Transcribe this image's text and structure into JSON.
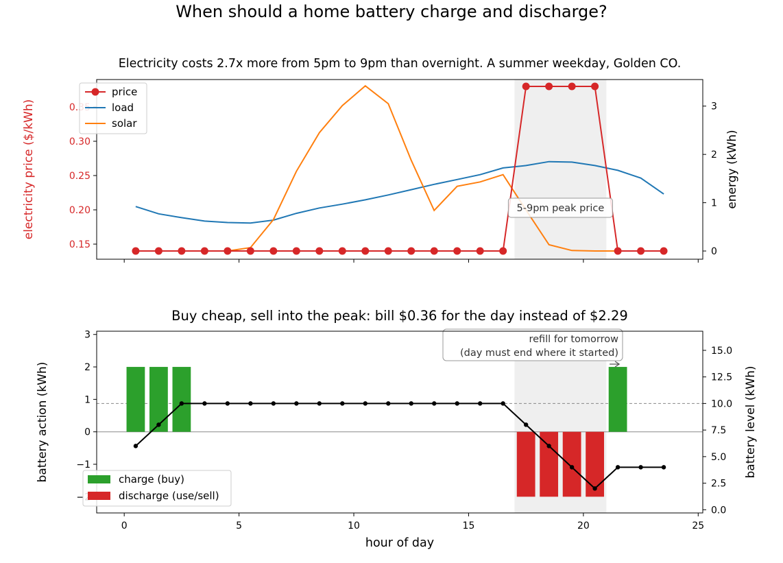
{
  "suptitle": "When should a home battery charge and discharge?",
  "chart_data": [
    {
      "type": "line",
      "title": "Electricity costs 2.7x more from 5pm to 9pm than overnight. A summer weekday, Golden CO.",
      "x": [
        0.5,
        1.5,
        2.5,
        3.5,
        4.5,
        5.5,
        6.5,
        7.5,
        8.5,
        9.5,
        10.5,
        11.5,
        12.5,
        13.5,
        14.5,
        15.5,
        16.5,
        17.5,
        18.5,
        19.5,
        20.5,
        21.5,
        22.5,
        23.5
      ],
      "xlim": [
        -1.2,
        25.2
      ],
      "xticks": [
        0,
        5,
        10,
        15,
        20,
        25
      ],
      "ylabel_left": "electricity price ($/kWh)",
      "ylim_left": [
        0.128,
        0.39
      ],
      "yticks_left": [
        "0.15",
        "0.20",
        "0.25",
        "0.30",
        "0.35"
      ],
      "ylabel_right": "energy (kWh)",
      "ylim_right": [
        -0.17,
        3.55
      ],
      "yticks_right": [
        "0",
        "1",
        "2",
        "3"
      ],
      "series": [
        {
          "name": "price",
          "axis": "left",
          "color": "#d62728",
          "marker": "circle",
          "values": [
            0.14,
            0.14,
            0.14,
            0.14,
            0.14,
            0.14,
            0.14,
            0.14,
            0.14,
            0.14,
            0.14,
            0.14,
            0.14,
            0.14,
            0.14,
            0.14,
            0.14,
            0.38,
            0.38,
            0.38,
            0.38,
            0.14,
            0.14,
            0.14
          ]
        },
        {
          "name": "load",
          "axis": "right",
          "color": "#1f77b4",
          "values": [
            0.92,
            0.77,
            0.69,
            0.62,
            0.59,
            0.58,
            0.64,
            0.78,
            0.89,
            0.97,
            1.06,
            1.16,
            1.27,
            1.38,
            1.48,
            1.58,
            1.72,
            1.77,
            1.85,
            1.84,
            1.77,
            1.67,
            1.51,
            1.18
          ]
        },
        {
          "name": "solar",
          "axis": "right",
          "color": "#ff7f0e",
          "values": [
            0,
            0,
            0,
            0,
            0,
            0.07,
            0.65,
            1.65,
            2.45,
            3.01,
            3.42,
            3.05,
            1.88,
            0.84,
            1.34,
            1.43,
            1.58,
            0.85,
            0.13,
            0.01,
            0,
            0,
            0,
            0
          ]
        }
      ],
      "shaded_span": [
        17,
        21
      ],
      "annotation": "5-9pm peak price",
      "legend_position": "top-left"
    },
    {
      "type": "bar",
      "title": "Buy cheap, sell into the peak: bill $0.36 for the day instead of $2.29",
      "xlabel": "hour of day",
      "x": [
        0.5,
        1.5,
        2.5,
        3.5,
        4.5,
        5.5,
        6.5,
        7.5,
        8.5,
        9.5,
        10.5,
        11.5,
        12.5,
        13.5,
        14.5,
        15.5,
        16.5,
        17.5,
        18.5,
        19.5,
        20.5,
        21.5,
        22.5,
        23.5
      ],
      "xlim": [
        -1.2,
        25.2
      ],
      "xticks": [
        "0",
        "5",
        "10",
        "15",
        "20",
        "25"
      ],
      "ylabel_left": "battery action (kWh)",
      "ylim_left": [
        -2.5,
        3.1
      ],
      "yticks_left": [
        "−2",
        "−1",
        "0",
        "1",
        "2",
        "3"
      ],
      "ylabel_right": "battery level (kWh)",
      "ylim_right": [
        -0.3,
        16.8
      ],
      "yticks_right": [
        "0.0",
        "2.5",
        "5.0",
        "7.5",
        "10.0",
        "12.5",
        "15.0"
      ],
      "series": [
        {
          "name": "charge (buy)",
          "color": "#2ca02c",
          "values": [
            2,
            2,
            2,
            0,
            0,
            0,
            0,
            0,
            0,
            0,
            0,
            0,
            0,
            0,
            0,
            0,
            0,
            0,
            0,
            0,
            0,
            2,
            0,
            0
          ]
        },
        {
          "name": "discharge (use/sell)",
          "color": "#d62728",
          "values": [
            0,
            0,
            0,
            0,
            0,
            0,
            0,
            0,
            0,
            0,
            0,
            0,
            0,
            0,
            0,
            0,
            0,
            -2,
            -2,
            -2,
            -2,
            0,
            0,
            0
          ]
        },
        {
          "axis": "right",
          "color": "#000000",
          "style": "line-dot",
          "values": [
            6,
            8,
            10,
            10,
            10,
            10,
            10,
            10,
            10,
            10,
            10,
            10,
            10,
            10,
            10,
            10,
            10,
            8,
            6,
            4,
            2,
            4,
            4,
            4
          ]
        }
      ],
      "reference_line_right": 10,
      "shaded_span": [
        17,
        21
      ],
      "annotation": [
        "refill for tomorrow",
        "(day must end where it started)"
      ],
      "legend_position": "bottom-left"
    }
  ]
}
